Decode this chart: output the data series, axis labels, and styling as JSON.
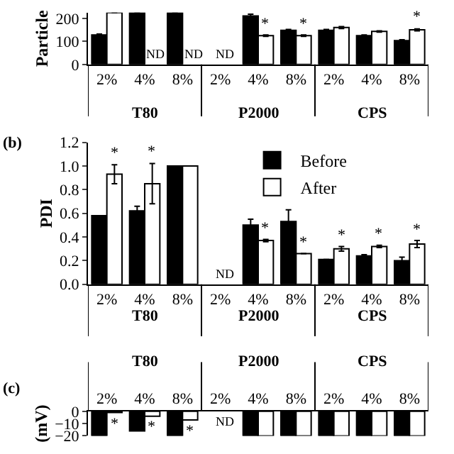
{
  "chart_data": [
    {
      "type": "bar",
      "ylabel": "Particle",
      "categories": [
        "2%",
        "4%",
        "8%",
        "2%",
        "4%",
        "8%",
        "2%",
        "4%",
        "8%"
      ],
      "annotations": [
        "T80",
        "P2000",
        "CPS"
      ],
      "ylim": [
        0,
        225
      ],
      "yticks": [
        0,
        100,
        200
      ],
      "series": [
        {
          "color": "#000000",
          "values": [
            128,
            225,
            225,
            null,
            210,
            148,
            148,
            125,
            103
          ],
          "errors": [
            4,
            null,
            null,
            null,
            8,
            4,
            4,
            3,
            4
          ],
          "value_labels": [
            null,
            null,
            null,
            "ND",
            null,
            null,
            null,
            null,
            null
          ]
        },
        {
          "color": "#ffffff",
          "values": [
            225,
            null,
            null,
            null,
            125,
            125,
            160,
            143,
            150
          ],
          "errors": [
            null,
            null,
            null,
            null,
            3,
            3,
            4,
            3,
            4
          ],
          "value_labels": [
            null,
            "ND",
            "ND",
            null,
            "*",
            "*",
            null,
            null,
            "*"
          ]
        }
      ]
    },
    {
      "type": "bar",
      "title": "(b)",
      "ylabel": "PDI",
      "categories": [
        "2%",
        "4%",
        "8%",
        "2%",
        "4%",
        "8%",
        "2%",
        "4%",
        "8%"
      ],
      "annotations": [
        "T80",
        "P2000",
        "CPS"
      ],
      "ylim": [
        0,
        1.2
      ],
      "yticks": [
        {
          "value": 0,
          "label": "0.0"
        },
        {
          "value": 0.2,
          "label": "0.2"
        },
        {
          "value": 0.4,
          "label": "0.4"
        },
        {
          "value": 0.6,
          "label": "0.6"
        },
        {
          "value": 0.8,
          "label": "0.8"
        },
        {
          "value": 1,
          "label": "1.0"
        },
        {
          "value": 1.2,
          "label": "1.2"
        }
      ],
      "legend": "top",
      "series": [
        {
          "name": "Before",
          "color": "#000000",
          "values": [
            0.58,
            0.62,
            1.0,
            null,
            0.5,
            0.53,
            0.21,
            0.24,
            0.2
          ],
          "errors": [
            null,
            0.04,
            null,
            null,
            0.05,
            0.1,
            null,
            0.01,
            0.03
          ],
          "value_labels": [
            null,
            null,
            null,
            "ND",
            null,
            null,
            null,
            null,
            null
          ]
        },
        {
          "name": "After",
          "color": "#ffffff",
          "values": [
            0.93,
            0.85,
            1.0,
            null,
            0.37,
            0.26,
            0.3,
            0.32,
            0.34
          ],
          "errors": [
            0.08,
            0.17,
            null,
            null,
            0.01,
            null,
            0.02,
            0.01,
            0.03
          ],
          "value_labels": [
            "*",
            "*",
            null,
            null,
            "*",
            "*",
            "*",
            "*",
            "*"
          ]
        }
      ]
    },
    {
      "type": "bar",
      "title": "(c)",
      "ylabel": "(mV)",
      "categories": [
        "2%",
        "4%",
        "8%",
        "2%",
        "4%",
        "8%",
        "2%",
        "4%",
        "8%"
      ],
      "annotations": [
        "T80",
        "P2000",
        "CPS"
      ],
      "ylim": [
        -20,
        0
      ],
      "yticks": [
        0,
        {
          "value": -10,
          "label": "−10"
        },
        {
          "value": -20,
          "label": "−20"
        }
      ],
      "series": [
        {
          "color": "#000000",
          "values": [
            -20,
            -16,
            -20,
            null,
            -20,
            -20,
            -20,
            -20,
            -20
          ],
          "value_labels": [
            null,
            null,
            null,
            "ND",
            null,
            null,
            null,
            null,
            null
          ]
        },
        {
          "color": "#ffffff",
          "values": [
            -1,
            -4,
            -7,
            null,
            -20,
            -20,
            -20,
            -20,
            -20
          ],
          "value_labels": [
            "*",
            "*",
            "*",
            null,
            null,
            null,
            null,
            null,
            null
          ]
        }
      ]
    }
  ]
}
